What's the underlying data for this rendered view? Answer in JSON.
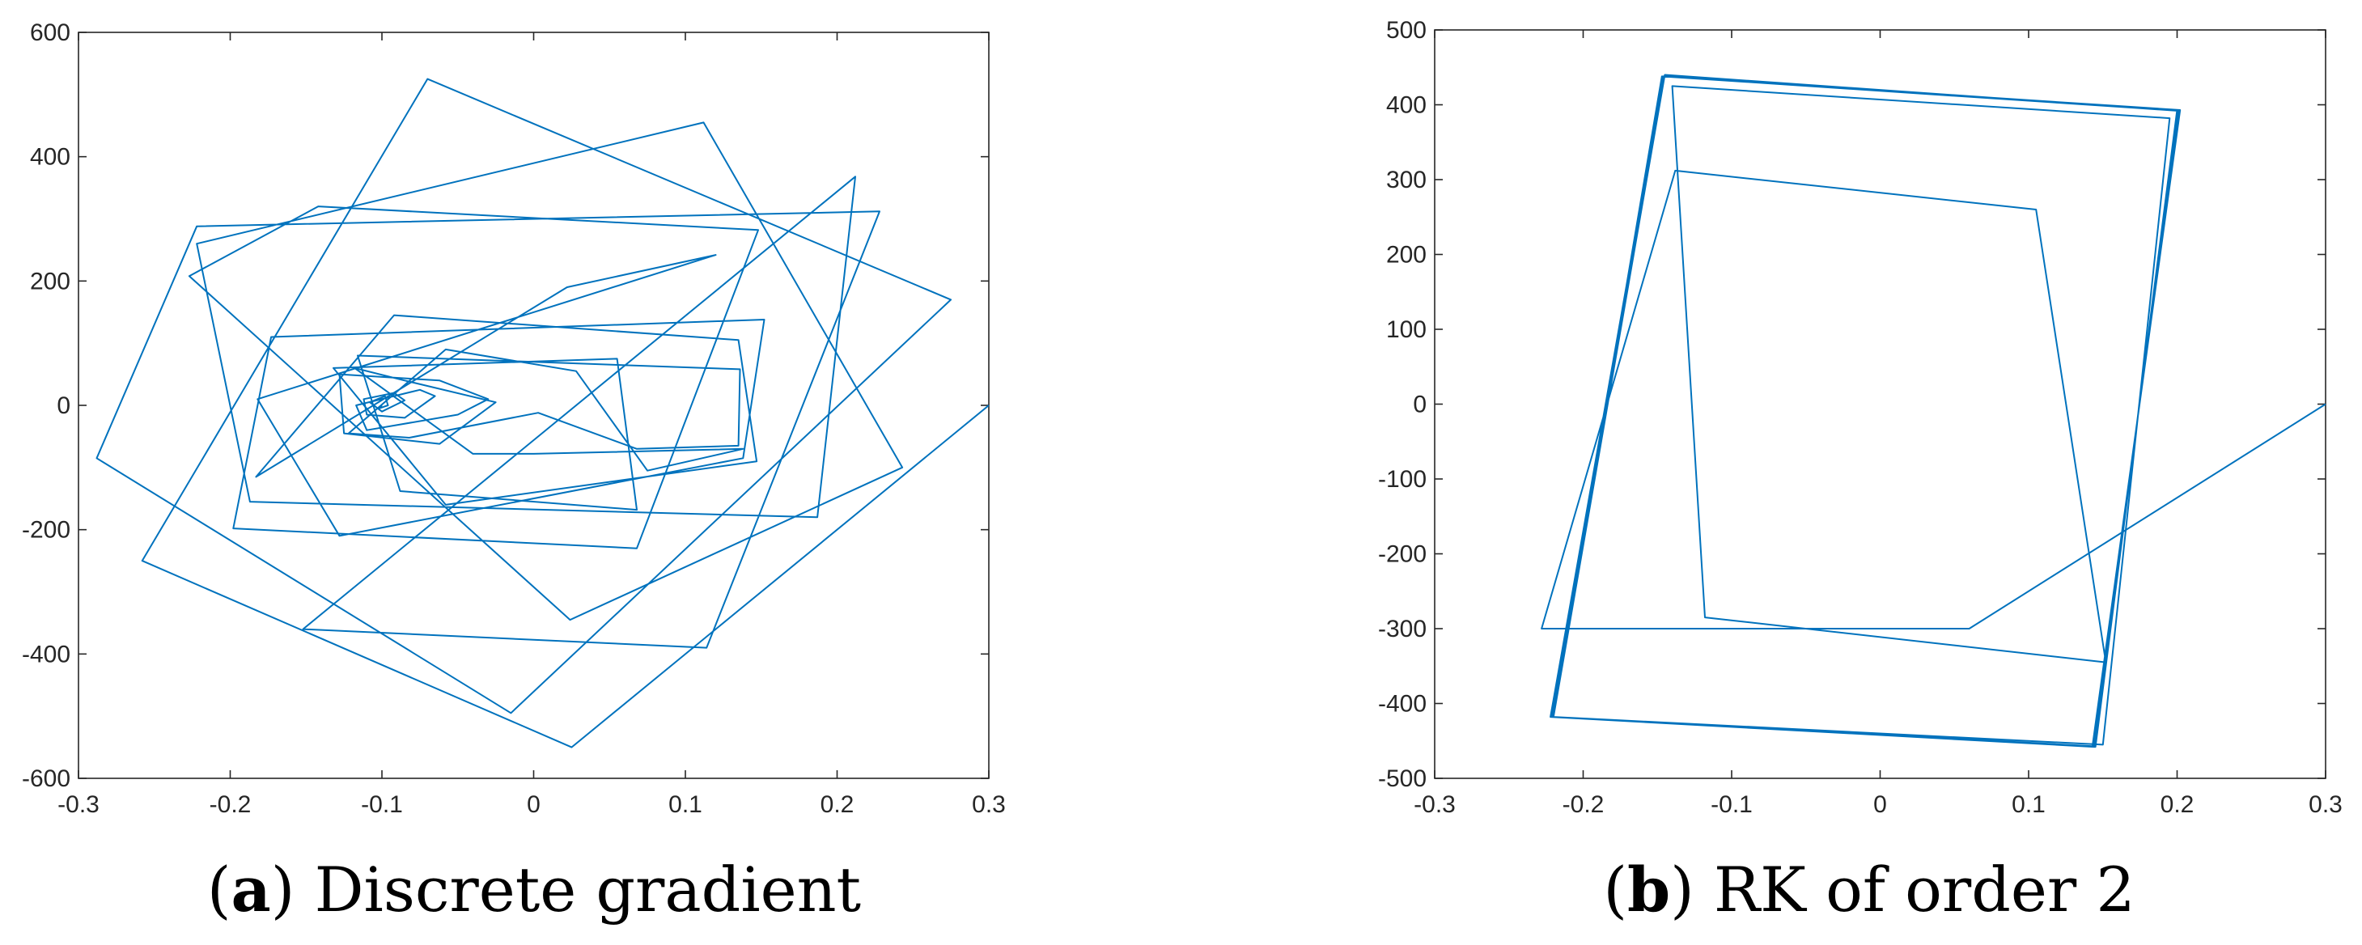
{
  "captions": [
    {
      "letter": "a",
      "text": " Discrete gradient"
    },
    {
      "letter": "b",
      "text": " RK of order 2"
    }
  ],
  "chart_data": [
    {
      "type": "line",
      "title": "",
      "xlabel": "",
      "ylabel": "",
      "xlim": [
        -0.3,
        0.3
      ],
      "ylim": [
        -600,
        600
      ],
      "xticks": [
        -0.3,
        -0.2,
        -0.1,
        0,
        0.1,
        0.2,
        0.3
      ],
      "yticks": [
        -600,
        -400,
        -200,
        0,
        200,
        400,
        600
      ],
      "xtick_labels": [
        "-0.3",
        "-0.2",
        "-0.1",
        "0",
        "0.1",
        "0.2",
        "0.3"
      ],
      "ytick_labels": [
        "-600",
        "-400",
        "-200",
        "0",
        "200",
        "400",
        "600"
      ],
      "grid": false,
      "line_color": "#0072BD",
      "series": [
        {
          "x": [
            0.3,
            0.025,
            -0.258,
            -0.07,
            0.275,
            -0.015,
            -0.288,
            -0.222,
            0.228,
            0.114,
            -0.152,
            0.212,
            0.187,
            -0.187,
            -0.222,
            0.112,
            0.243,
            0.024,
            -0.227,
            -0.142,
            0.148,
            0.068,
            -0.198,
            -0.173,
            0.152,
            0.138,
            -0.128,
            -0.182,
            0.12,
            0.022,
            -0.183,
            -0.092,
            0.135,
            0.147,
            -0.058,
            -0.132,
            0.055,
            0.068,
            -0.088,
            -0.116,
            0.136,
            0.135,
            0.068,
            0.003,
            -0.082,
            -0.122,
            -0.058,
            0.028,
            0.075,
            0.138,
            0.0,
            -0.04,
            -0.118,
            -0.085,
            -0.025,
            -0.062,
            -0.125,
            -0.128,
            -0.062,
            -0.03,
            -0.05,
            -0.11,
            -0.117,
            -0.075,
            -0.065,
            -0.085,
            -0.11,
            -0.112,
            -0.092,
            -0.085,
            -0.1,
            -0.108,
            -0.098,
            -0.096,
            -0.102,
            -0.1
          ],
          "y": [
            0,
            -550,
            -250,
            525,
            170,
            -495,
            -85,
            288,
            312,
            -390,
            -360,
            368,
            -180,
            -155,
            260,
            455,
            -100,
            -345,
            208,
            320,
            282,
            -230,
            -198,
            110,
            138,
            -85,
            -210,
            10,
            242,
            190,
            -115,
            145,
            105,
            -90,
            -160,
            60,
            75,
            -168,
            -138,
            80,
            58,
            -65,
            -70,
            -12,
            -52,
            -45,
            90,
            55,
            -105,
            -70,
            -78,
            -78,
            60,
            40,
            5,
            -62,
            -45,
            50,
            40,
            10,
            -15,
            -40,
            0,
            25,
            15,
            -20,
            -15,
            10,
            20,
            8,
            -10,
            5,
            15,
            0,
            -5,
            0
          ]
        }
      ]
    },
    {
      "type": "line",
      "title": "",
      "xlabel": "",
      "ylabel": "",
      "xlim": [
        -0.3,
        0.3
      ],
      "ylim": [
        -500,
        500
      ],
      "xticks": [
        -0.3,
        -0.2,
        -0.1,
        0,
        0.1,
        0.2,
        0.3
      ],
      "yticks": [
        -500,
        -400,
        -300,
        -200,
        -100,
        0,
        100,
        200,
        300,
        400,
        500
      ],
      "xtick_labels": [
        "-0.3",
        "-0.2",
        "-0.1",
        "0",
        "0.1",
        "0.2",
        "0.3"
      ],
      "ytick_labels": [
        "-500",
        "-400",
        "-300",
        "-200",
        "-100",
        "0",
        "100",
        "200",
        "300",
        "400",
        "500"
      ],
      "grid": false,
      "line_color": "#0072BD",
      "series": [
        {
          "x": [
            0.3,
            0.06,
            -0.228,
            -0.138,
            0.105,
            0.152,
            -0.118,
            -0.14,
            0.195,
            0.15,
            -0.22,
            -0.145,
            0.2,
            0.145,
            -0.222,
            -0.146,
            0.201,
            0.144,
            -0.221,
            -0.146,
            0.202,
            0.143,
            -0.22,
            -0.147,
            0.2,
            0.145
          ],
          "y": [
            0,
            -300,
            -300,
            312,
            260,
            -345,
            -285,
            425,
            382,
            -455,
            -418,
            440,
            392,
            -458,
            -418,
            438,
            392,
            -458,
            -418,
            438,
            393,
            -457,
            -418,
            438,
            393,
            -458
          ]
        }
      ]
    }
  ]
}
